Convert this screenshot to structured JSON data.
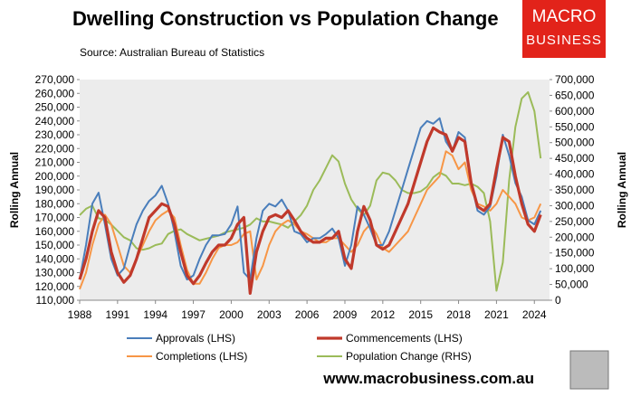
{
  "chart_data": {
    "type": "line",
    "title": "Dwelling Construction vs Population Change",
    "subtitle": "Source: Australian Bureau of Statistics",
    "ylabel": "Rolling Annual",
    "y2label": "Rolling Annual",
    "x": [
      1988,
      1988.5,
      1989,
      1989.5,
      1990,
      1990.5,
      1991,
      1991.5,
      1992,
      1992.5,
      1993,
      1993.5,
      1994,
      1994.5,
      1995,
      1995.5,
      1996,
      1996.5,
      1997,
      1997.5,
      1998,
      1998.5,
      1999,
      1999.5,
      2000,
      2000.5,
      2001,
      2001.5,
      2002,
      2002.5,
      2003,
      2003.5,
      2004,
      2004.5,
      2005,
      2005.5,
      2006,
      2006.5,
      2007,
      2007.5,
      2008,
      2008.5,
      2009,
      2009.5,
      2010,
      2010.5,
      2011,
      2011.5,
      2012,
      2012.5,
      2013,
      2013.5,
      2014,
      2014.5,
      2015,
      2015.5,
      2016,
      2016.5,
      2017,
      2017.5,
      2018,
      2018.5,
      2019,
      2019.5,
      2020,
      2020.5,
      2021,
      2021.5,
      2022,
      2022.5,
      2023,
      2023.5,
      2024,
      2024.5
    ],
    "xlim": [
      1988,
      2025.2
    ],
    "xticks": [
      1988,
      1991,
      1994,
      1997,
      2000,
      2003,
      2006,
      2009,
      2012,
      2015,
      2018,
      2021,
      2024
    ],
    "ylim": [
      110000,
      270000
    ],
    "yticks": [
      {
        "value": 110000,
        "label": "110,000"
      },
      {
        "value": 120000,
        "label": "120,000"
      },
      {
        "value": 130000,
        "label": "130,000"
      },
      {
        "value": 140000,
        "label": "140,000"
      },
      {
        "value": 150000,
        "label": "150,000"
      },
      {
        "value": 160000,
        "label": "160,000"
      },
      {
        "value": 170000,
        "label": "170,000"
      },
      {
        "value": 180000,
        "label": "180,000"
      },
      {
        "value": 190000,
        "label": "190,000"
      },
      {
        "value": 200000,
        "label": "200,000"
      },
      {
        "value": 210000,
        "label": "210,000"
      },
      {
        "value": 220000,
        "label": "220,000"
      },
      {
        "value": 230000,
        "label": "230,000"
      },
      {
        "value": 240000,
        "label": "240,000"
      },
      {
        "value": 250000,
        "label": "250,000"
      },
      {
        "value": 260000,
        "label": "260,000"
      },
      {
        "value": 270000,
        "label": "270,000"
      }
    ],
    "y2lim": [
      0,
      700000
    ],
    "y2ticks": [
      0,
      {
        "value": 50000,
        "label": "50,000"
      },
      {
        "value": 100000,
        "label": "100,000"
      },
      {
        "value": 150000,
        "label": "150,000"
      },
      {
        "value": 200000,
        "label": "200,000"
      },
      {
        "value": 250000,
        "label": "250,000"
      },
      {
        "value": 300000,
        "label": "300,000"
      },
      {
        "value": 350000,
        "label": "350,000"
      },
      {
        "value": 400000,
        "label": "400,000"
      },
      {
        "value": 450000,
        "label": "450,000"
      },
      {
        "value": 500000,
        "label": "500,000"
      },
      {
        "value": 550000,
        "label": "550,000"
      },
      {
        "value": 600000,
        "label": "600,000"
      },
      {
        "value": 650000,
        "label": "650,000"
      },
      {
        "value": 700000,
        "label": "700,000"
      }
    ],
    "series": [
      {
        "name": "Approvals (LHS)",
        "color": "#4a7ebb",
        "values": [
          125000,
          150000,
          180000,
          188000,
          165000,
          140000,
          128000,
          133000,
          150000,
          165000,
          175000,
          182000,
          186000,
          193000,
          180000,
          160000,
          135000,
          125000,
          128000,
          140000,
          150000,
          157000,
          157000,
          158000,
          165000,
          178000,
          130000,
          125000,
          155000,
          175000,
          180000,
          178000,
          183000,
          175000,
          160000,
          158000,
          152000,
          155000,
          155000,
          158000,
          162000,
          155000,
          135000,
          150000,
          178000,
          172000,
          162000,
          150000,
          150000,
          160000,
          175000,
          190000,
          205000,
          220000,
          235000,
          240000,
          238000,
          242000,
          225000,
          218000,
          232000,
          228000,
          195000,
          175000,
          172000,
          178000,
          200000,
          230000,
          215000,
          195000,
          185000,
          168000,
          165000,
          175000
        ]
      },
      {
        "name": "Commencements (LHS)",
        "color": "#c0392b",
        "values": [
          125000,
          140000,
          160000,
          175000,
          170000,
          145000,
          130000,
          123000,
          128000,
          140000,
          155000,
          170000,
          175000,
          180000,
          178000,
          165000,
          145000,
          128000,
          122000,
          128000,
          137000,
          145000,
          150000,
          150000,
          155000,
          165000,
          170000,
          115000,
          145000,
          160000,
          170000,
          172000,
          170000,
          175000,
          168000,
          160000,
          155000,
          152000,
          152000,
          155000,
          155000,
          160000,
          140000,
          133000,
          160000,
          178000,
          168000,
          150000,
          147000,
          150000,
          160000,
          170000,
          180000,
          195000,
          210000,
          225000,
          235000,
          232000,
          230000,
          218000,
          228000,
          225000,
          195000,
          178000,
          175000,
          180000,
          205000,
          228000,
          225000,
          200000,
          180000,
          165000,
          160000,
          172000
        ]
      },
      {
        "name": "Completions (LHS)",
        "color": "#f79646",
        "values": [
          118000,
          130000,
          150000,
          165000,
          172000,
          165000,
          150000,
          135000,
          130000,
          140000,
          150000,
          160000,
          168000,
          172000,
          175000,
          170000,
          150000,
          132000,
          122000,
          122000,
          130000,
          140000,
          148000,
          150000,
          150000,
          152000,
          158000,
          160000,
          125000,
          135000,
          150000,
          160000,
          165000,
          168000,
          165000,
          160000,
          158000,
          155000,
          152000,
          152000,
          155000,
          155000,
          150000,
          145000,
          150000,
          160000,
          165000,
          158000,
          148000,
          145000,
          150000,
          155000,
          160000,
          170000,
          180000,
          190000,
          195000,
          200000,
          218000,
          215000,
          205000,
          210000,
          190000,
          180000,
          178000,
          175000,
          180000,
          190000,
          185000,
          180000,
          170000,
          168000,
          170000,
          180000
        ]
      },
      {
        "name": "Population Change (RHS)",
        "color": "#9bbb59",
        "axis": "y2",
        "values": [
          270000,
          290000,
          300000,
          260000,
          255000,
          240000,
          220000,
          200000,
          190000,
          165000,
          160000,
          165000,
          175000,
          180000,
          210000,
          220000,
          225000,
          210000,
          200000,
          190000,
          195000,
          200000,
          205000,
          215000,
          220000,
          225000,
          230000,
          240000,
          260000,
          250000,
          250000,
          245000,
          240000,
          230000,
          250000,
          270000,
          300000,
          350000,
          380000,
          420000,
          460000,
          440000,
          370000,
          320000,
          290000,
          270000,
          300000,
          380000,
          405000,
          400000,
          380000,
          350000,
          340000,
          340000,
          345000,
          360000,
          390000,
          405000,
          395000,
          370000,
          370000,
          365000,
          370000,
          360000,
          340000,
          250000,
          30000,
          120000,
          380000,
          550000,
          640000,
          660000,
          600000,
          450000
        ]
      }
    ]
  },
  "logo": [
    "MACRO",
    "BUSINESS"
  ],
  "website": "www.macrobusiness.com.au"
}
